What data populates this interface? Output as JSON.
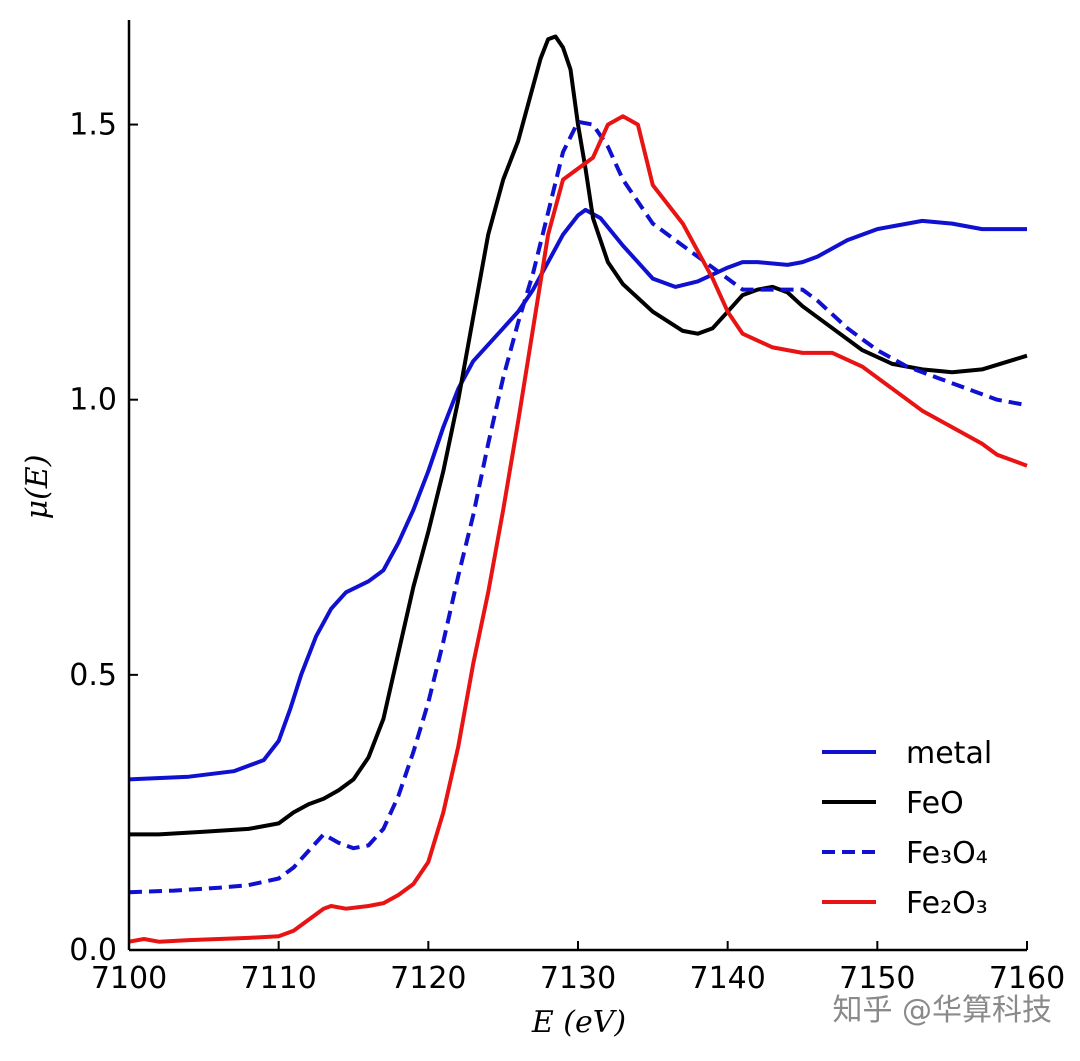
{
  "chart_data": {
    "type": "line",
    "title": "",
    "xlabel": "E (eV)",
    "ylabel": "μ(E)",
    "xlim": [
      7100,
      7160
    ],
    "ylim": [
      0.0,
      1.69
    ],
    "x_ticks": [
      7100,
      7110,
      7120,
      7130,
      7140,
      7150,
      7160
    ],
    "y_ticks": [
      0.0,
      0.5,
      1.0,
      1.5
    ],
    "x_tick_labels": [
      "7100",
      "7110",
      "7120",
      "7130",
      "7140",
      "7150",
      "7160"
    ],
    "y_tick_labels": [
      "0.0",
      "0.5",
      "1.0",
      "1.5"
    ],
    "grid": false,
    "legend_position": "bottom-right",
    "series": [
      {
        "name": "metal",
        "color": "#1010d0",
        "dash": "solid",
        "points": [
          [
            7100,
            0.31
          ],
          [
            7104,
            0.315
          ],
          [
            7107,
            0.325
          ],
          [
            7109,
            0.345
          ],
          [
            7110,
            0.38
          ],
          [
            7110.8,
            0.44
          ],
          [
            7111.5,
            0.5
          ],
          [
            7112.5,
            0.57
          ],
          [
            7113.5,
            0.62
          ],
          [
            7114.5,
            0.65
          ],
          [
            7116,
            0.67
          ],
          [
            7117,
            0.69
          ],
          [
            7118,
            0.74
          ],
          [
            7119,
            0.8
          ],
          [
            7120,
            0.87
          ],
          [
            7121,
            0.95
          ],
          [
            7122,
            1.02
          ],
          [
            7123,
            1.07
          ],
          [
            7125,
            1.13
          ],
          [
            7126,
            1.16
          ],
          [
            7127,
            1.2
          ],
          [
            7128,
            1.25
          ],
          [
            7129,
            1.3
          ],
          [
            7130,
            1.335
          ],
          [
            7130.5,
            1.345
          ],
          [
            7131.5,
            1.33
          ],
          [
            7133,
            1.28
          ],
          [
            7135,
            1.22
          ],
          [
            7136.5,
            1.205
          ],
          [
            7138,
            1.215
          ],
          [
            7140,
            1.24
          ],
          [
            7141,
            1.25
          ],
          [
            7142,
            1.25
          ],
          [
            7144,
            1.245
          ],
          [
            7145,
            1.25
          ],
          [
            7146,
            1.26
          ],
          [
            7148,
            1.29
          ],
          [
            7150,
            1.31
          ],
          [
            7152,
            1.32
          ],
          [
            7153,
            1.325
          ],
          [
            7155,
            1.32
          ],
          [
            7157,
            1.31
          ],
          [
            7160,
            1.31
          ]
        ]
      },
      {
        "name": "FeO",
        "color": "#000000",
        "dash": "solid",
        "points": [
          [
            7100,
            0.21
          ],
          [
            7102,
            0.21
          ],
          [
            7105,
            0.215
          ],
          [
            7108,
            0.22
          ],
          [
            7110,
            0.23
          ],
          [
            7111,
            0.25
          ],
          [
            7112,
            0.265
          ],
          [
            7113,
            0.275
          ],
          [
            7114,
            0.29
          ],
          [
            7115,
            0.31
          ],
          [
            7116,
            0.35
          ],
          [
            7117,
            0.42
          ],
          [
            7118,
            0.54
          ],
          [
            7119,
            0.66
          ],
          [
            7120,
            0.76
          ],
          [
            7121,
            0.87
          ],
          [
            7122,
            1.0
          ],
          [
            7123,
            1.15
          ],
          [
            7124,
            1.3
          ],
          [
            7125,
            1.4
          ],
          [
            7126,
            1.47
          ],
          [
            7127,
            1.57
          ],
          [
            7127.5,
            1.62
          ],
          [
            7128,
            1.655
          ],
          [
            7128.5,
            1.66
          ],
          [
            7129,
            1.64
          ],
          [
            7129.5,
            1.6
          ],
          [
            7130,
            1.5
          ],
          [
            7130.5,
            1.42
          ],
          [
            7131,
            1.33
          ],
          [
            7132,
            1.25
          ],
          [
            7133,
            1.21
          ],
          [
            7135,
            1.16
          ],
          [
            7137,
            1.125
          ],
          [
            7138,
            1.12
          ],
          [
            7139,
            1.13
          ],
          [
            7140,
            1.16
          ],
          [
            7141,
            1.19
          ],
          [
            7142,
            1.2
          ],
          [
            7143,
            1.205
          ],
          [
            7144,
            1.195
          ],
          [
            7145,
            1.17
          ],
          [
            7147,
            1.13
          ],
          [
            7149,
            1.09
          ],
          [
            7151,
            1.065
          ],
          [
            7153,
            1.055
          ],
          [
            7155,
            1.05
          ],
          [
            7157,
            1.055
          ],
          [
            7160,
            1.08
          ]
        ]
      },
      {
        "name": "Fe₃O₄",
        "color": "#1010d0",
        "dash": "dashed",
        "points": [
          [
            7100,
            0.105
          ],
          [
            7103,
            0.108
          ],
          [
            7106,
            0.113
          ],
          [
            7108,
            0.118
          ],
          [
            7110,
            0.13
          ],
          [
            7111,
            0.15
          ],
          [
            7112,
            0.18
          ],
          [
            7113,
            0.21
          ],
          [
            7114,
            0.195
          ],
          [
            7115,
            0.185
          ],
          [
            7116,
            0.19
          ],
          [
            7117,
            0.22
          ],
          [
            7118,
            0.28
          ],
          [
            7119,
            0.36
          ],
          [
            7120,
            0.45
          ],
          [
            7121,
            0.56
          ],
          [
            7122,
            0.68
          ],
          [
            7123,
            0.79
          ],
          [
            7124,
            0.92
          ],
          [
            7125,
            1.04
          ],
          [
            7126,
            1.14
          ],
          [
            7127,
            1.23
          ],
          [
            7128,
            1.34
          ],
          [
            7129,
            1.45
          ],
          [
            7130,
            1.505
          ],
          [
            7131,
            1.5
          ],
          [
            7132,
            1.46
          ],
          [
            7133,
            1.4
          ],
          [
            7135,
            1.32
          ],
          [
            7137,
            1.28
          ],
          [
            7139,
            1.24
          ],
          [
            7141,
            1.2
          ],
          [
            7143,
            1.2
          ],
          [
            7145,
            1.2
          ],
          [
            7146,
            1.18
          ],
          [
            7148,
            1.13
          ],
          [
            7150,
            1.09
          ],
          [
            7152,
            1.06
          ],
          [
            7154,
            1.04
          ],
          [
            7156,
            1.02
          ],
          [
            7158,
            1.0
          ],
          [
            7160,
            0.99
          ]
        ]
      },
      {
        "name": "Fe₂O₃",
        "color": "#e81414",
        "dash": "solid",
        "points": [
          [
            7100,
            0.015
          ],
          [
            7101,
            0.02
          ],
          [
            7102,
            0.015
          ],
          [
            7104,
            0.018
          ],
          [
            7106,
            0.02
          ],
          [
            7108,
            0.022
          ],
          [
            7110,
            0.025
          ],
          [
            7111,
            0.035
          ],
          [
            7112,
            0.055
          ],
          [
            7113,
            0.075
          ],
          [
            7113.5,
            0.08
          ],
          [
            7114.5,
            0.075
          ],
          [
            7116,
            0.08
          ],
          [
            7117,
            0.085
          ],
          [
            7118,
            0.1
          ],
          [
            7119,
            0.12
          ],
          [
            7120,
            0.16
          ],
          [
            7121,
            0.25
          ],
          [
            7122,
            0.37
          ],
          [
            7123,
            0.52
          ],
          [
            7124,
            0.65
          ],
          [
            7125,
            0.8
          ],
          [
            7126,
            0.96
          ],
          [
            7127,
            1.13
          ],
          [
            7128,
            1.3
          ],
          [
            7129,
            1.4
          ],
          [
            7130,
            1.42
          ],
          [
            7131,
            1.44
          ],
          [
            7132,
            1.5
          ],
          [
            7133,
            1.515
          ],
          [
            7134,
            1.5
          ],
          [
            7135,
            1.39
          ],
          [
            7137,
            1.32
          ],
          [
            7139,
            1.22
          ],
          [
            7140,
            1.16
          ],
          [
            7141,
            1.12
          ],
          [
            7143,
            1.095
          ],
          [
            7145,
            1.085
          ],
          [
            7147,
            1.085
          ],
          [
            7149,
            1.06
          ],
          [
            7151,
            1.02
          ],
          [
            7153,
            0.98
          ],
          [
            7155,
            0.95
          ],
          [
            7157,
            0.92
          ],
          [
            7158,
            0.9
          ],
          [
            7160,
            0.88
          ]
        ]
      }
    ]
  },
  "watermark": "知乎 @华算科技"
}
